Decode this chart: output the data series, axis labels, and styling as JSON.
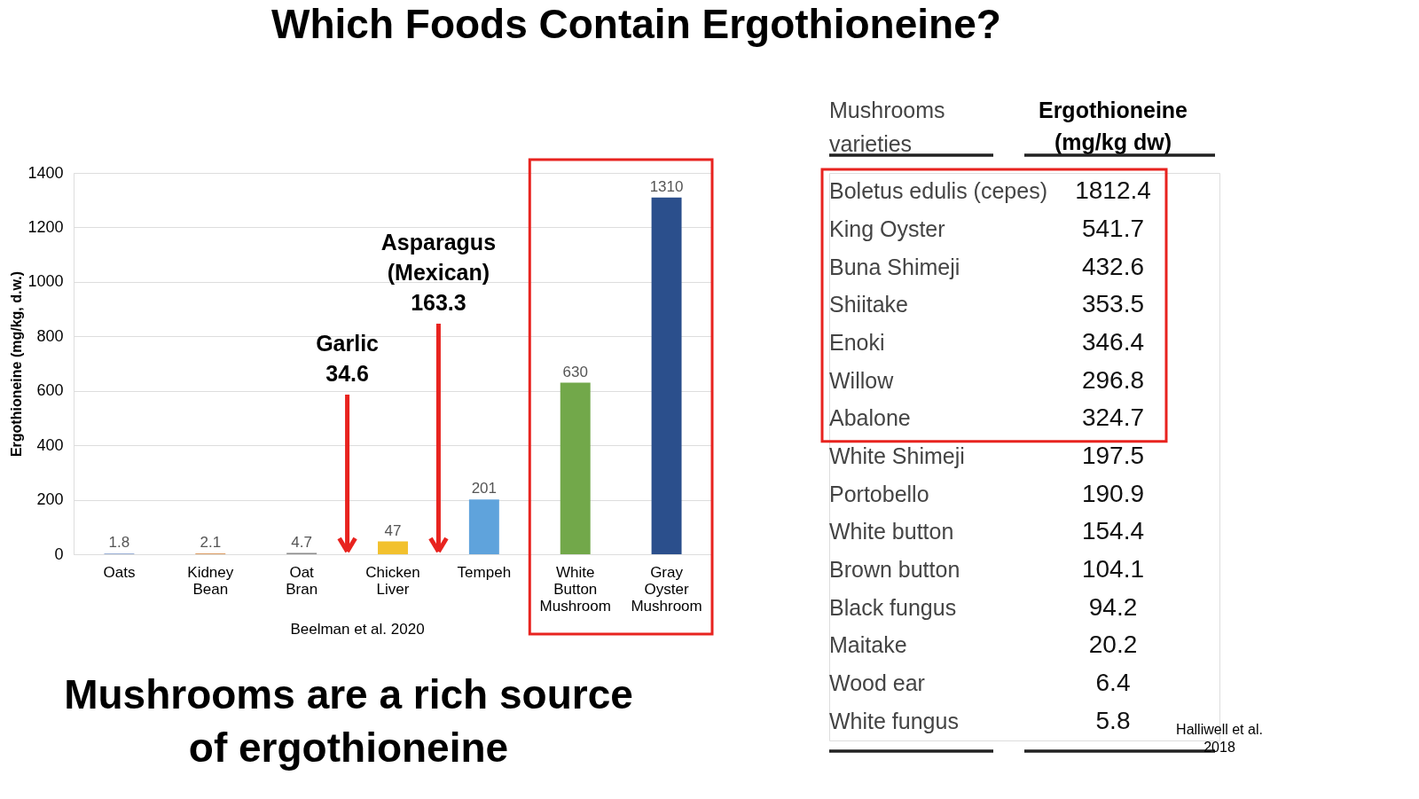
{
  "chart_data": [
    {
      "type": "bar",
      "title": "Which Foods Contain Ergothioneine?",
      "ylabel": "Ergothioneine (mg/kg, d.w.)",
      "categories": [
        "Oats",
        "Kidney Bean",
        "Oat Bran",
        "Chicken Liver",
        "Tempeh",
        "White Button Mushroom",
        "Gray Oyster Mushroom"
      ],
      "values": [
        1.8,
        2.1,
        4.7,
        47,
        201,
        630,
        1310
      ],
      "colors": [
        "#3b64ad",
        "#d07a2e",
        "#8c8c8c",
        "#f2c12e",
        "#5fa3dc",
        "#72a84a",
        "#2b4f8c"
      ],
      "ylim": [
        0,
        1400
      ],
      "yticks": [
        0,
        200,
        400,
        600,
        800,
        1000,
        1200,
        1400
      ],
      "grid": "y",
      "data_labels": true,
      "annotations": [
        "Garlic 34.6",
        "Asparagus (Mexican) 163.3",
        "Beelman et al. 2020",
        "Mushrooms are a rich source of ergothioneine"
      ]
    },
    {
      "type": "other",
      "xlabel": "Mushrooms varieties",
      "ylabel": "Ergothioneine (mg/kg dw)",
      "categories": [
        "Boletus edulis (cepes)",
        "King Oyster",
        "Buna Shimeji",
        "Shiitake",
        "Enoki",
        "Willow",
        "Abalone",
        "White Shimeji",
        "Portobello",
        "White button",
        "Brown button",
        "Black fungus",
        "Maitake",
        "Wood ear",
        "White fungus"
      ],
      "values": [
        1812.4,
        541.7,
        432.6,
        353.5,
        346.4,
        296.8,
        324.7,
        197.5,
        190.9,
        154.4,
        104.1,
        94.2,
        20.2,
        6.4,
        5.8
      ],
      "data_labels": true,
      "annotations": [
        "Halliwell et al. 2018"
      ]
    }
  ]
}
